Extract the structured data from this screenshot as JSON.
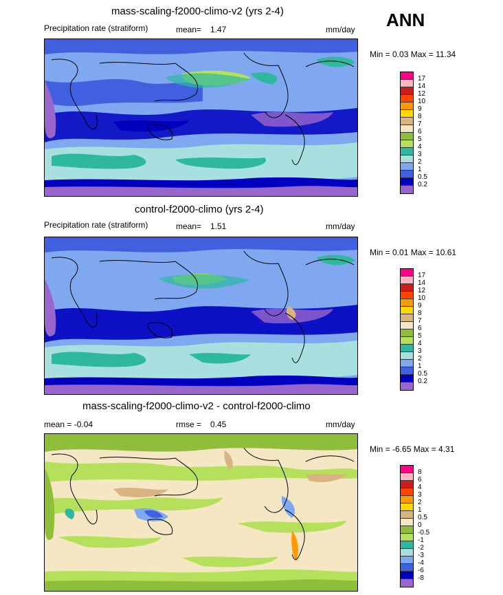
{
  "season": "ANN",
  "panels": [
    {
      "title": "mass-scaling-f2000-climo-v2 (yrs 2-4)",
      "left_label": "Precipitation rate (stratiform)",
      "stat_label": "mean=",
      "stat_value": "1.47",
      "units": "mm/day",
      "minmax": "Min =  0.03 Max =  11.34",
      "levels": [
        "17",
        "14",
        "12",
        "10",
        "9",
        "8",
        "7",
        "6",
        "5",
        "4",
        "3",
        "2",
        "1",
        "0.5",
        "0.2"
      ],
      "colors": [
        "#ff0088",
        "#ffb6c1",
        "#c81e1e",
        "#ff4500",
        "#ff9900",
        "#ffd700",
        "#d9b382",
        "#f5e6c4",
        "#8fbf3a",
        "#b5e05c",
        "#2eb8a0",
        "#a8e0e0",
        "#7fa8f0",
        "#4060e0",
        "#0000c0",
        "#9966cc"
      ]
    },
    {
      "title": "control-f2000-climo (yrs 2-4)",
      "left_label": "Precipitation rate (stratiform)",
      "stat_label": "mean=",
      "stat_value": "1.51",
      "units": "mm/day",
      "minmax": "Min =  0.01 Max =  10.61",
      "levels": [
        "17",
        "14",
        "12",
        "10",
        "9",
        "8",
        "7",
        "6",
        "5",
        "4",
        "3",
        "2",
        "1",
        "0.5",
        "0.2"
      ],
      "colors": [
        "#ff0088",
        "#ffb6c1",
        "#c81e1e",
        "#ff4500",
        "#ff9900",
        "#ffd700",
        "#d9b382",
        "#f5e6c4",
        "#8fbf3a",
        "#b5e05c",
        "#2eb8a0",
        "#a8e0e0",
        "#7fa8f0",
        "#4060e0",
        "#0000c0",
        "#9966cc"
      ]
    },
    {
      "title": "mass-scaling-f2000-climo-v2 - control-f2000-climo",
      "left_label": "mean =  -0.04",
      "stat_label": "rmse =",
      "stat_value": "0.45",
      "units": "mm/day",
      "minmax": "Min =  -6.65 Max =  4.31",
      "levels": [
        "8",
        "6",
        "4",
        "3",
        "2",
        "1",
        "0.5",
        "0",
        "-0.5",
        "-1",
        "-2",
        "-3",
        "-4",
        "-6",
        "-8"
      ],
      "colors": [
        "#ff0088",
        "#ffb6c1",
        "#c81e1e",
        "#ff4500",
        "#ff9900",
        "#ffd700",
        "#d9b382",
        "#f5e6c4",
        "#8fbf3a",
        "#b5e05c",
        "#2eb8a0",
        "#a8e0e0",
        "#7fa8f0",
        "#4060e0",
        "#0000c0",
        "#9966cc"
      ]
    }
  ]
}
